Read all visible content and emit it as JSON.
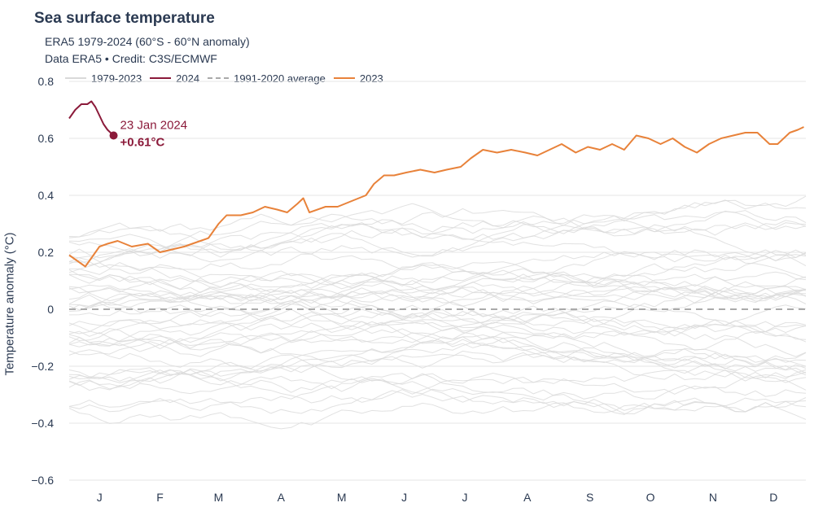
{
  "title": "Sea surface temperature",
  "subtitle_line1": "ERA5 1979-2024 (60°S - 60°N anomaly)",
  "subtitle_line2": "Data ERA5 • Credit: C3S/ECMWF",
  "colors": {
    "history": "#d9d9d9",
    "y2024": "#8b1a3a",
    "average": "#aaaaaa",
    "y2023": "#e8823a",
    "text": "#2b3a52",
    "grid": "#e6e6e6"
  },
  "legend": [
    {
      "label": "1979-2023",
      "key": "history",
      "style": "solid"
    },
    {
      "label": "2024",
      "key": "y2024",
      "style": "solid"
    },
    {
      "label": "1991-2020 average",
      "key": "average",
      "style": "dashed"
    },
    {
      "label": "2023",
      "key": "y2023",
      "style": "solid"
    }
  ],
  "annotation": {
    "date": "23 Jan 2024",
    "value": "+0.61°C"
  },
  "chart_data": {
    "type": "line",
    "title": "Sea surface temperature",
    "ylabel": "Temperature anomaly (°C)",
    "xlabel": "",
    "ylim": [
      -0.6,
      0.8
    ],
    "yticks": [
      0.8,
      0.6,
      0.4,
      0.2,
      0,
      -0.2,
      -0.4,
      -0.6
    ],
    "ytick_labels": [
      "0.8",
      "0.6",
      "0.4",
      "0.2",
      "0",
      "−0.2",
      "−0.4",
      "−0.6"
    ],
    "month_labels": [
      "J",
      "F",
      "M",
      "A",
      "M",
      "J",
      "J",
      "A",
      "S",
      "O",
      "N",
      "D"
    ],
    "xlim_day": [
      1,
      366
    ],
    "grid": true,
    "legend_position": "top-left",
    "series": [
      {
        "name": "2023",
        "key": "y2023",
        "x": [
          1,
          5,
          9,
          12,
          16,
          20,
          25,
          32,
          40,
          46,
          52,
          58,
          62,
          66,
          70,
          75,
          79,
          86,
          92,
          98,
          104,
          109,
          114,
          117,
          120,
          128,
          134,
          141,
          148,
          152,
          157,
          162,
          168,
          175,
          182,
          188,
          195,
          200,
          206,
          213,
          220,
          227,
          233,
          239,
          245,
          252,
          258,
          264,
          270,
          276,
          282,
          288,
          294,
          300,
          306,
          312,
          318,
          324,
          330,
          336,
          342,
          348,
          352,
          358,
          362,
          365
        ],
        "y": [
          0.19,
          0.17,
          0.15,
          0.18,
          0.22,
          0.23,
          0.24,
          0.22,
          0.23,
          0.2,
          0.21,
          0.22,
          0.23,
          0.24,
          0.25,
          0.3,
          0.33,
          0.33,
          0.34,
          0.36,
          0.35,
          0.34,
          0.37,
          0.39,
          0.34,
          0.36,
          0.36,
          0.38,
          0.4,
          0.44,
          0.47,
          0.47,
          0.48,
          0.49,
          0.48,
          0.49,
          0.5,
          0.53,
          0.56,
          0.55,
          0.56,
          0.55,
          0.54,
          0.56,
          0.58,
          0.55,
          0.57,
          0.56,
          0.58,
          0.56,
          0.61,
          0.6,
          0.58,
          0.6,
          0.57,
          0.55,
          0.58,
          0.6,
          0.61,
          0.62,
          0.62,
          0.58,
          0.58,
          0.62,
          0.63,
          0.64
        ]
      },
      {
        "name": "2024",
        "key": "y2024",
        "x": [
          1,
          4,
          7,
          10,
          12,
          14,
          16,
          18,
          20,
          23
        ],
        "y": [
          0.67,
          0.7,
          0.72,
          0.72,
          0.73,
          0.71,
          0.68,
          0.65,
          0.63,
          0.61
        ]
      },
      {
        "name": "1991-2020 average",
        "key": "average",
        "x": [
          1,
          366
        ],
        "y": [
          0,
          0
        ]
      }
    ],
    "history_band": {
      "series_count": 45,
      "range_min": -0.55,
      "range_max": 0.45
    }
  }
}
